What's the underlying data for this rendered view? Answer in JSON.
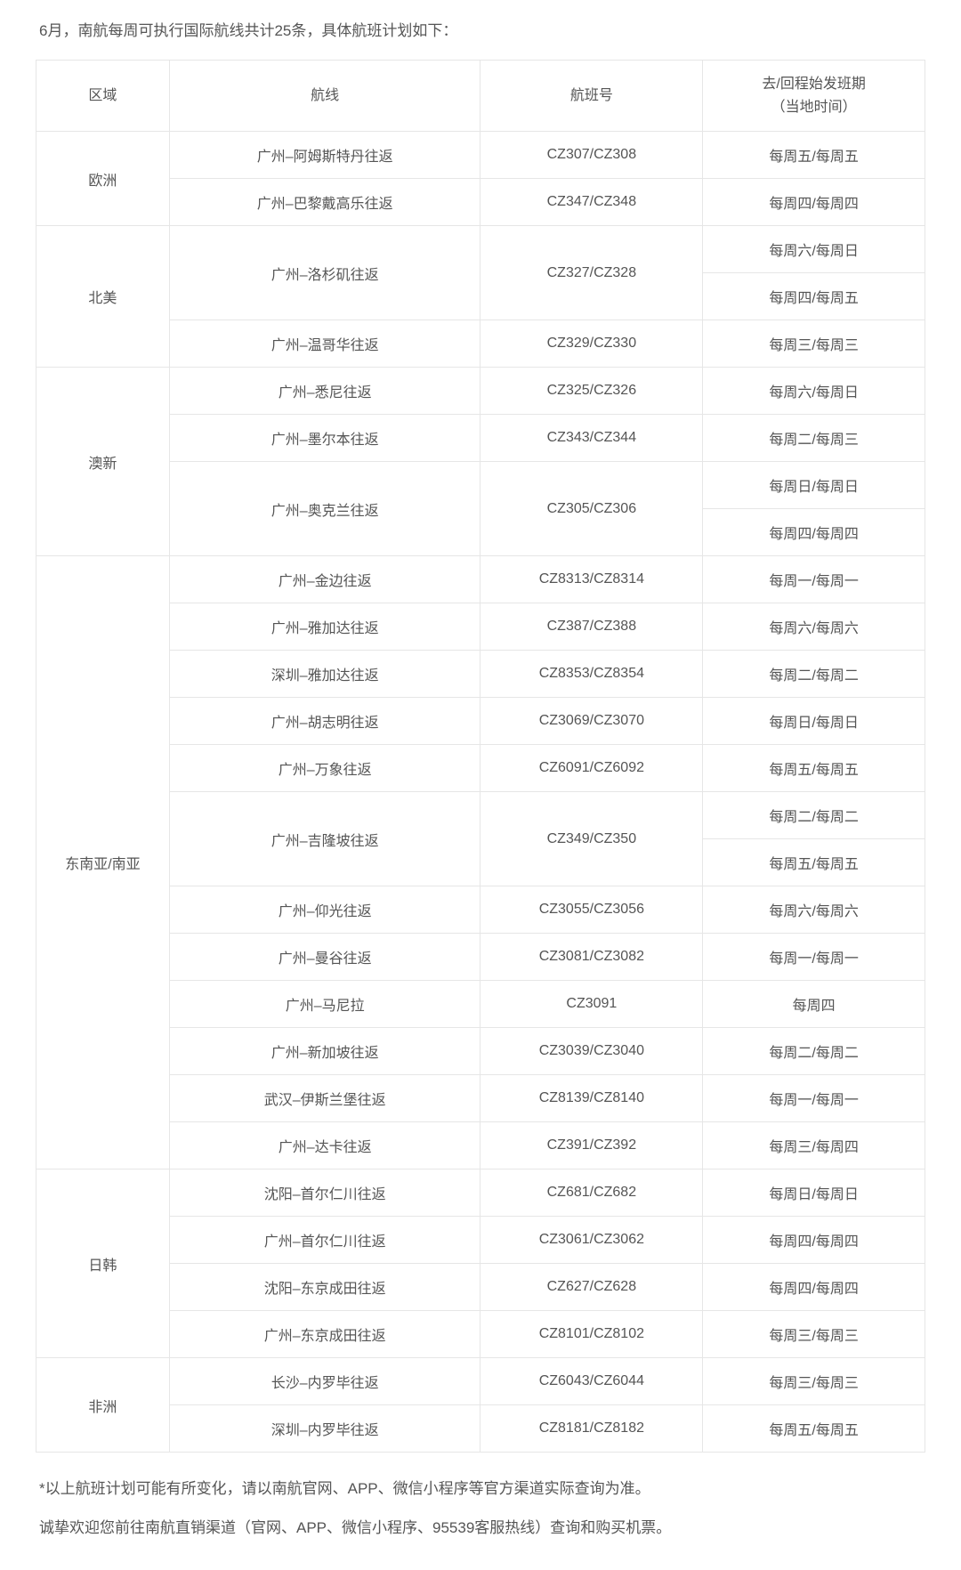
{
  "intro": "6月，南航每周可执行国际航线共计25条，具体航班计划如下：",
  "columns": {
    "region": "区域",
    "route": "航线",
    "flight": "航班号",
    "days_line1": "去/回程始发班期",
    "days_line2": "（当地时间）"
  },
  "regions": [
    {
      "name": "欧洲",
      "rowSpan": 2,
      "rows": [
        {
          "route": "广州–阿姆斯特丹往返",
          "routeSpan": 1,
          "flight": "CZ307/CZ308",
          "flightSpan": 1,
          "days": "每周五/每周五"
        },
        {
          "route": "广州–巴黎戴高乐往返",
          "routeSpan": 1,
          "flight": "CZ347/CZ348",
          "flightSpan": 1,
          "days": "每周四/每周四"
        }
      ]
    },
    {
      "name": "北美",
      "rowSpan": 3,
      "rows": [
        {
          "route": "广州–洛杉矶往返",
          "routeSpan": 2,
          "flight": "CZ327/CZ328",
          "flightSpan": 2,
          "days": "每周六/每周日"
        },
        {
          "route": null,
          "flight": null,
          "days": "每周四/每周五"
        },
        {
          "route": "广州–温哥华往返",
          "routeSpan": 1,
          "flight": "CZ329/CZ330",
          "flightSpan": 1,
          "days": "每周三/每周三"
        }
      ]
    },
    {
      "name": "澳新",
      "rowSpan": 4,
      "rows": [
        {
          "route": "广州–悉尼往返",
          "routeSpan": 1,
          "flight": "CZ325/CZ326",
          "flightSpan": 1,
          "days": "每周六/每周日"
        },
        {
          "route": "广州–墨尔本往返",
          "routeSpan": 1,
          "flight": "CZ343/CZ344",
          "flightSpan": 1,
          "days": "每周二/每周三"
        },
        {
          "route": "广州–奥克兰往返",
          "routeSpan": 2,
          "flight": "CZ305/CZ306",
          "flightSpan": 2,
          "days": "每周日/每周日"
        },
        {
          "route": null,
          "flight": null,
          "days": "每周四/每周四"
        }
      ]
    },
    {
      "name": "东南亚/南亚",
      "rowSpan": 13,
      "rows": [
        {
          "route": "广州–金边往返",
          "routeSpan": 1,
          "flight": "CZ8313/CZ8314",
          "flightSpan": 1,
          "days": "每周一/每周一"
        },
        {
          "route": "广州–雅加达往返",
          "routeSpan": 1,
          "flight": "CZ387/CZ388",
          "flightSpan": 1,
          "days": "每周六/每周六"
        },
        {
          "route": "深圳–雅加达往返",
          "routeSpan": 1,
          "flight": "CZ8353/CZ8354",
          "flightSpan": 1,
          "days": "每周二/每周二"
        },
        {
          "route": "广州–胡志明往返",
          "routeSpan": 1,
          "flight": "CZ3069/CZ3070",
          "flightSpan": 1,
          "days": "每周日/每周日"
        },
        {
          "route": "广州–万象往返",
          "routeSpan": 1,
          "flight": "CZ6091/CZ6092",
          "flightSpan": 1,
          "days": "每周五/每周五"
        },
        {
          "route": "广州–吉隆坡往返",
          "routeSpan": 2,
          "flight": "CZ349/CZ350",
          "flightSpan": 2,
          "days": "每周二/每周二"
        },
        {
          "route": null,
          "flight": null,
          "days": "每周五/每周五"
        },
        {
          "route": "广州–仰光往返",
          "routeSpan": 1,
          "flight": "CZ3055/CZ3056",
          "flightSpan": 1,
          "days": "每周六/每周六"
        },
        {
          "route": "广州–曼谷往返",
          "routeSpan": 1,
          "flight": "CZ3081/CZ3082",
          "flightSpan": 1,
          "days": "每周一/每周一"
        },
        {
          "route": "广州–马尼拉",
          "routeSpan": 1,
          "flight": "CZ3091",
          "flightSpan": 1,
          "days": "每周四"
        },
        {
          "route": "广州–新加坡往返",
          "routeSpan": 1,
          "flight": "CZ3039/CZ3040",
          "flightSpan": 1,
          "days": "每周二/每周二"
        },
        {
          "route": "武汉–伊斯兰堡往返",
          "routeSpan": 1,
          "flight": "CZ8139/CZ8140",
          "flightSpan": 1,
          "days": "每周一/每周一"
        },
        {
          "route": "广州–达卡往返",
          "routeSpan": 1,
          "flight": "CZ391/CZ392",
          "flightSpan": 1,
          "days": "每周三/每周四"
        }
      ]
    },
    {
      "name": "日韩",
      "rowSpan": 4,
      "rows": [
        {
          "route": "沈阳–首尔仁川往返",
          "routeSpan": 1,
          "flight": "CZ681/CZ682",
          "flightSpan": 1,
          "days": "每周日/每周日"
        },
        {
          "route": "广州–首尔仁川往返",
          "routeSpan": 1,
          "flight": "CZ3061/CZ3062",
          "flightSpan": 1,
          "days": "每周四/每周四"
        },
        {
          "route": "沈阳–东京成田往返",
          "routeSpan": 1,
          "flight": "CZ627/CZ628",
          "flightSpan": 1,
          "days": "每周四/每周四"
        },
        {
          "route": "广州–东京成田往返",
          "routeSpan": 1,
          "flight": "CZ8101/CZ8102",
          "flightSpan": 1,
          "days": "每周三/每周三"
        }
      ]
    },
    {
      "name": "非洲",
      "rowSpan": 2,
      "rows": [
        {
          "route": "长沙–内罗毕往返",
          "routeSpan": 1,
          "flight": "CZ6043/CZ6044",
          "flightSpan": 1,
          "days": "每周三/每周三"
        },
        {
          "route": "深圳–内罗毕往返",
          "routeSpan": 1,
          "flight": "CZ8181/CZ8182",
          "flightSpan": 1,
          "days": "每周五/每周五"
        }
      ]
    }
  ],
  "footnotes": [
    "*以上航班计划可能有所变化，请以南航官网、APP、微信小程序等官方渠道实际查询为准。",
    "诚挚欢迎您前往南航直销渠道（官网、APP、微信小程序、95539客服热线）查询和购买机票。"
  ],
  "style": {
    "border_color": "#e6e6e6",
    "text_color": "#555555",
    "bg_color": "#ffffff",
    "font_size_body": 16,
    "font_size_intro": 17,
    "font_size_foot": 17
  }
}
